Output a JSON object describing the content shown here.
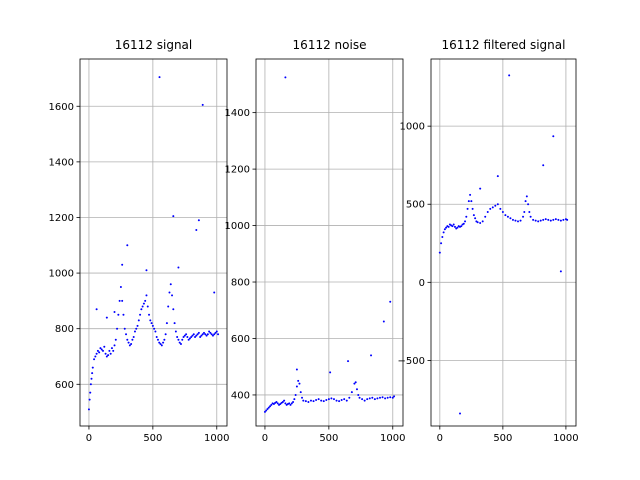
{
  "chart_data": [
    {
      "type": "scatter",
      "title": "16112 signal",
      "xlim": [
        -70,
        1080
      ],
      "ylim": [
        450,
        1770
      ],
      "xticks": [
        0,
        500,
        1000
      ],
      "yticks": [
        600,
        800,
        1000,
        1200,
        1400,
        1600
      ],
      "grid": true,
      "marker_color": "#0000ff",
      "series": [
        {
          "x": [
            0,
            5,
            10,
            15,
            20,
            25,
            30,
            40,
            50,
            60,
            70,
            80,
            90,
            100,
            110,
            120,
            130,
            140,
            150,
            160,
            170,
            180,
            190,
            200,
            210,
            220,
            230,
            240,
            250,
            260,
            270,
            280,
            290,
            300,
            310,
            320,
            330,
            340,
            350,
            360,
            370,
            380,
            390,
            400,
            410,
            420,
            430,
            440,
            450,
            460,
            470,
            480,
            490,
            500,
            510,
            520,
            530,
            540,
            550,
            560,
            570,
            580,
            590,
            600,
            610,
            620,
            630,
            640,
            650,
            660,
            670,
            680,
            690,
            700,
            710,
            720,
            730,
            740,
            750,
            760,
            770,
            780,
            790,
            800,
            810,
            820,
            830,
            840,
            850,
            860,
            870,
            880,
            890,
            900,
            910,
            920,
            930,
            940,
            950,
            960,
            970,
            980,
            990,
            1000,
            1010,
            300,
            552,
            660,
            700,
            840,
            890,
            260,
            450,
            860,
            980,
            60,
            140,
            200
          ],
          "y": [
            510,
            545,
            570,
            600,
            620,
            640,
            660,
            690,
            700,
            710,
            720,
            715,
            730,
            725,
            720,
            735,
            710,
            700,
            705,
            720,
            710,
            730,
            720,
            740,
            760,
            800,
            850,
            900,
            950,
            900,
            850,
            800,
            780,
            760,
            750,
            740,
            745,
            760,
            770,
            790,
            800,
            810,
            830,
            850,
            870,
            880,
            890,
            900,
            920,
            880,
            850,
            830,
            820,
            810,
            800,
            790,
            770,
            760,
            750,
            745,
            740,
            750,
            760,
            780,
            820,
            880,
            930,
            960,
            920,
            870,
            820,
            790,
            770,
            760,
            750,
            745,
            760,
            770,
            775,
            780,
            770,
            760,
            765,
            770,
            775,
            780,
            770,
            775,
            780,
            785,
            770,
            775,
            780,
            785,
            780,
            775,
            780,
            790,
            785,
            780,
            775,
            780,
            785,
            790,
            780,
            1100,
            1705,
            1205,
            1020,
            1155,
            1605,
            1030,
            1010,
            1190,
            930,
            870,
            840,
            860
          ]
        }
      ]
    },
    {
      "type": "scatter",
      "title": "16112 noise",
      "xlim": [
        -70,
        1080
      ],
      "ylim": [
        290,
        1590
      ],
      "xticks": [
        0,
        500,
        1000
      ],
      "yticks": [
        400,
        600,
        800,
        1000,
        1200,
        1400
      ],
      "grid": true,
      "marker_color": "#0000ff",
      "series": [
        {
          "x": [
            0,
            10,
            20,
            30,
            40,
            50,
            60,
            70,
            80,
            90,
            100,
            110,
            120,
            130,
            140,
            150,
            160,
            170,
            180,
            190,
            200,
            210,
            220,
            230,
            240,
            250,
            260,
            270,
            280,
            290,
            300,
            320,
            340,
            360,
            380,
            400,
            420,
            440,
            460,
            480,
            500,
            520,
            540,
            560,
            580,
            600,
            620,
            640,
            660,
            680,
            700,
            710,
            720,
            730,
            740,
            760,
            780,
            800,
            820,
            840,
            860,
            880,
            900,
            920,
            940,
            960,
            980,
            1000,
            1010,
            160,
            250,
            930,
            980,
            830,
            650,
            510
          ],
          "y": [
            340,
            345,
            350,
            355,
            360,
            365,
            370,
            368,
            372,
            375,
            370,
            365,
            368,
            372,
            375,
            380,
            370,
            365,
            368,
            370,
            365,
            370,
            375,
            385,
            400,
            430,
            450,
            440,
            410,
            390,
            380,
            378,
            375,
            380,
            378,
            382,
            385,
            380,
            378,
            382,
            385,
            388,
            385,
            380,
            378,
            382,
            385,
            380,
            390,
            410,
            440,
            445,
            420,
            400,
            390,
            385,
            380,
            385,
            388,
            390,
            385,
            388,
            390,
            392,
            388,
            390,
            392,
            390,
            395,
            1525,
            490,
            660,
            730,
            540,
            520,
            480
          ]
        }
      ]
    },
    {
      "type": "scatter",
      "title": "16112 filtered signal",
      "xlim": [
        -70,
        1080
      ],
      "ylim": [
        -920,
        1430
      ],
      "xticks": [
        0,
        500,
        1000
      ],
      "yticks": [
        -500,
        0,
        500,
        1000
      ],
      "grid": true,
      "marker_color": "#0000ff",
      "series": [
        {
          "x": [
            0,
            10,
            20,
            30,
            40,
            50,
            60,
            70,
            80,
            90,
            100,
            110,
            120,
            130,
            140,
            150,
            160,
            170,
            180,
            190,
            200,
            210,
            220,
            230,
            240,
            250,
            260,
            270,
            280,
            290,
            300,
            320,
            340,
            360,
            380,
            400,
            420,
            440,
            460,
            480,
            500,
            520,
            540,
            560,
            580,
            600,
            620,
            640,
            660,
            670,
            680,
            690,
            700,
            710,
            720,
            740,
            760,
            780,
            800,
            820,
            840,
            860,
            880,
            900,
            920,
            940,
            960,
            980,
            1000,
            1010,
            550,
            900,
            960,
            160,
            820,
            460,
            320
          ],
          "y": [
            190,
            250,
            290,
            320,
            340,
            350,
            360,
            355,
            370,
            365,
            360,
            370,
            355,
            345,
            350,
            360,
            355,
            360,
            370,
            375,
            390,
            420,
            470,
            520,
            560,
            520,
            470,
            430,
            410,
            390,
            385,
            380,
            390,
            420,
            450,
            470,
            480,
            490,
            500,
            470,
            450,
            430,
            420,
            410,
            400,
            395,
            390,
            395,
            420,
            450,
            520,
            550,
            500,
            450,
            420,
            400,
            395,
            390,
            395,
            400,
            405,
            400,
            395,
            400,
            405,
            400,
            395,
            400,
            405,
            400,
            1325,
            935,
            70,
            -840,
            750,
            680,
            600
          ]
        }
      ]
    }
  ]
}
